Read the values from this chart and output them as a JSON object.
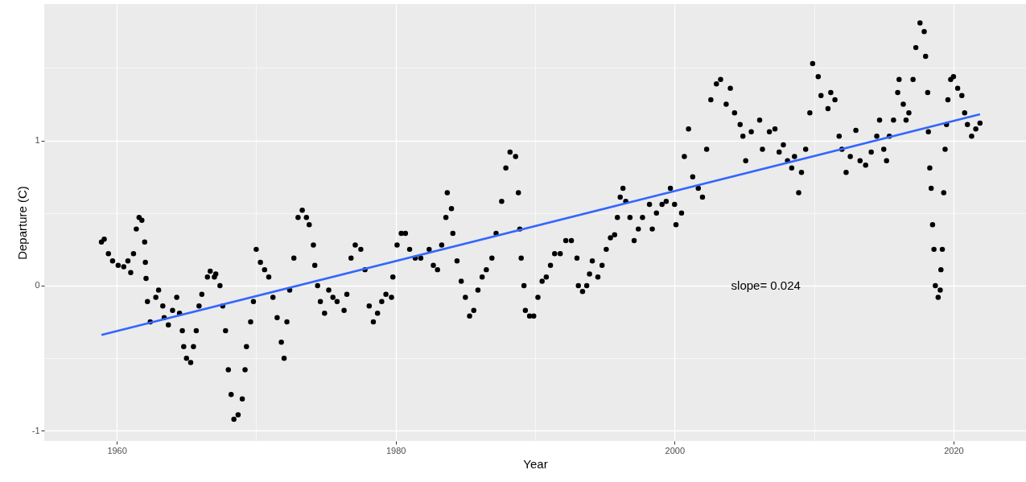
{
  "chart_data": {
    "type": "scatter",
    "xlabel": "Year",
    "ylabel": "Departure (C)",
    "xlim": [
      1954.8,
      2025.2
    ],
    "ylim": [
      -1.07,
      1.94
    ],
    "xticks": [
      1960,
      {
        "value": 1970,
        "label": null
      },
      1980,
      {
        "value": 1990,
        "label": null
      },
      2000,
      {
        "value": 2010,
        "label": null
      },
      2020
    ],
    "yticks": [
      -1,
      {
        "value": -0.5,
        "label": null
      },
      0,
      {
        "value": 0.5,
        "label": null
      },
      1,
      {
        "value": 1.5,
        "label": null
      }
    ],
    "grid": true,
    "annotations": [
      "slope= 0.024"
    ],
    "series": [
      {
        "marker": "circle",
        "color": "#000000",
        "x": [
          1958.9,
          1959.1,
          1959.4,
          1959.7,
          1960.1,
          1960.5,
          1960.8,
          1961.0,
          1961.2,
          1961.4,
          1961.6,
          1961.8,
          1962.0,
          1962.05,
          1962.1,
          1962.2,
          1962.4,
          1962.8,
          1963.0,
          1963.3,
          1963.4,
          1963.7,
          1964.0,
          1964.3,
          1964.5,
          1964.7,
          1964.8,
          1965.0,
          1965.3,
          1965.5,
          1965.7,
          1965.9,
          1966.1,
          1966.5,
          1966.7,
          1967.0,
          1967.1,
          1967.4,
          1967.6,
          1967.8,
          1968.0,
          1968.2,
          1968.4,
          1968.7,
          1969.0,
          1969.2,
          1969.3,
          1969.6,
          1969.8,
          1970.0,
          1970.3,
          1970.6,
          1970.9,
          1971.2,
          1971.5,
          1971.8,
          1972.0,
          1972.2,
          1972.4,
          1972.7,
          1973.0,
          1973.3,
          1973.6,
          1973.8,
          1974.1,
          1974.2,
          1974.4,
          1974.6,
          1974.9,
          1975.2,
          1975.5,
          1975.8,
          1976.3,
          1976.5,
          1976.8,
          1977.1,
          1977.5,
          1977.8,
          1978.1,
          1978.4,
          1978.7,
          1979.0,
          1979.3,
          1979.7,
          1979.8,
          1980.1,
          1980.4,
          1980.7,
          1981.0,
          1981.4,
          1981.8,
          1982.4,
          1982.7,
          1983.0,
          1983.3,
          1983.6,
          1983.7,
          1984.0,
          1984.1,
          1984.4,
          1984.7,
          1985.0,
          1985.3,
          1985.6,
          1985.9,
          1986.2,
          1986.5,
          1986.9,
          1987.2,
          1987.6,
          1987.9,
          1988.2,
          1988.6,
          1988.8,
          1988.9,
          1989.0,
          1989.2,
          1989.3,
          1989.6,
          1989.9,
          1990.2,
          1990.5,
          1990.8,
          1991.1,
          1991.4,
          1991.8,
          1992.2,
          1992.6,
          1993.0,
          1993.1,
          1993.4,
          1993.7,
          1993.9,
          1994.1,
          1994.5,
          1994.8,
          1995.1,
          1995.4,
          1995.7,
          1995.9,
          1996.1,
          1996.3,
          1996.5,
          1996.8,
          1997.1,
          1997.4,
          1997.7,
          1998.2,
          1998.4,
          1998.7,
          1999.1,
          1999.4,
          1999.7,
          2000.0,
          2000.1,
          2000.5,
          2000.7,
          2001.0,
          2001.3,
          2001.7,
          2002.0,
          2002.3,
          2002.6,
          2003.0,
          2003.3,
          2003.7,
          2004.0,
          2004.3,
          2004.7,
          2004.9,
          2005.1,
          2005.5,
          2006.1,
          2006.3,
          2006.8,
          2007.2,
          2007.5,
          2007.8,
          2008.1,
          2008.4,
          2008.6,
          2008.9,
          2009.1,
          2009.4,
          2009.7,
          2009.9,
          2010.3,
          2010.5,
          2011.0,
          2011.2,
          2011.5,
          2011.8,
          2012.0,
          2012.3,
          2012.6,
          2013.0,
          2013.3,
          2013.7,
          2014.1,
          2014.5,
          2014.7,
          2015.0,
          2015.2,
          2015.4,
          2015.7,
          2016.0,
          2016.1,
          2016.4,
          2016.6,
          2016.8,
          2017.1,
          2017.3,
          2017.6,
          2017.9,
          2018.0,
          2018.15,
          2018.2,
          2018.3,
          2018.4,
          2018.5,
          2018.6,
          2018.7,
          2018.9,
          2019.05,
          2019.1,
          2019.2,
          2019.3,
          2019.4,
          2019.5,
          2019.6,
          2019.8,
          2020.0,
          2020.3,
          2020.6,
          2020.8,
          2021.0,
          2021.3,
          2021.6,
          2021.9
        ],
        "values": [
          0.3,
          0.32,
          0.22,
          0.17,
          0.14,
          0.13,
          0.17,
          0.09,
          0.22,
          0.39,
          0.47,
          0.45,
          0.3,
          0.16,
          0.05,
          -0.11,
          -0.25,
          -0.08,
          -0.03,
          -0.14,
          -0.22,
          -0.27,
          -0.17,
          -0.08,
          -0.19,
          -0.31,
          -0.42,
          -0.5,
          -0.53,
          -0.42,
          -0.31,
          -0.14,
          -0.06,
          0.06,
          0.1,
          0.06,
          0.08,
          0.0,
          -0.14,
          -0.31,
          -0.58,
          -0.75,
          -0.92,
          -0.89,
          -0.78,
          -0.58,
          -0.42,
          -0.25,
          -0.11,
          0.25,
          0.16,
          0.11,
          0.06,
          -0.08,
          -0.22,
          -0.39,
          -0.5,
          -0.25,
          -0.03,
          0.19,
          0.47,
          0.52,
          0.47,
          0.42,
          0.28,
          0.14,
          0.0,
          -0.11,
          -0.19,
          -0.03,
          -0.08,
          -0.11,
          -0.17,
          -0.06,
          0.19,
          0.28,
          0.25,
          0.11,
          -0.14,
          -0.25,
          -0.19,
          -0.11,
          -0.06,
          -0.08,
          0.06,
          0.28,
          0.36,
          0.36,
          0.25,
          0.19,
          0.19,
          0.25,
          0.14,
          0.11,
          0.28,
          0.47,
          0.64,
          0.53,
          0.36,
          0.17,
          0.03,
          -0.08,
          -0.21,
          -0.17,
          -0.03,
          0.06,
          0.11,
          0.19,
          0.36,
          0.58,
          0.81,
          0.92,
          0.89,
          0.64,
          0.39,
          0.19,
          0.0,
          -0.17,
          -0.21,
          -0.21,
          -0.08,
          0.03,
          0.06,
          0.14,
          0.22,
          0.22,
          0.31,
          0.31,
          0.19,
          0.0,
          -0.04,
          0.0,
          0.08,
          0.17,
          0.06,
          0.14,
          0.25,
          0.33,
          0.35,
          0.47,
          0.61,
          0.67,
          0.58,
          0.47,
          0.31,
          0.39,
          0.47,
          0.56,
          0.39,
          0.5,
          0.56,
          0.58,
          0.67,
          0.56,
          0.42,
          0.5,
          0.89,
          1.08,
          0.75,
          0.67,
          0.61,
          0.94,
          1.28,
          1.39,
          1.42,
          1.25,
          1.36,
          1.19,
          1.11,
          1.03,
          0.86,
          1.06,
          1.14,
          0.94,
          1.06,
          1.08,
          0.92,
          0.97,
          0.86,
          0.81,
          0.89,
          0.64,
          0.78,
          0.94,
          1.19,
          1.53,
          1.44,
          1.31,
          1.22,
          1.33,
          1.28,
          1.03,
          0.94,
          0.78,
          0.89,
          1.07,
          0.86,
          0.83,
          0.92,
          1.03,
          1.14,
          0.94,
          0.86,
          1.03,
          1.14,
          1.33,
          1.42,
          1.25,
          1.14,
          1.19,
          1.42,
          1.64,
          1.81,
          1.75,
          1.58,
          1.33,
          1.06,
          0.81,
          0.67,
          0.42,
          0.25,
          0.0,
          -0.08,
          -0.03,
          0.11,
          0.25,
          0.64,
          0.94,
          1.11,
          1.28,
          1.42,
          1.44,
          1.36,
          1.31,
          1.19,
          1.11,
          1.03,
          1.08,
          1.12
        ]
      },
      {
        "type": "line",
        "color": "#3366ff",
        "x": [
          1958.9,
          2021.9
        ],
        "values": [
          -0.34,
          1.18
        ]
      }
    ]
  }
}
